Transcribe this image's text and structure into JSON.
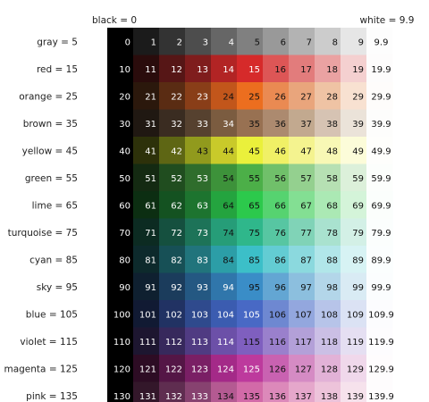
{
  "chart_data": {
    "type": "heatmap",
    "top_left_label": "black = 0",
    "top_right_label": "white = 9.9",
    "rows": [
      {
        "label": "gray = 5",
        "values": [
          "0",
          "1",
          "2",
          "3",
          "4",
          "5",
          "6",
          "7",
          "8",
          "9",
          "9.9"
        ],
        "colors": [
          "#000000",
          "#1b1b1b",
          "#333333",
          "#4d4d4d",
          "#666666",
          "#808080",
          "#999999",
          "#b3b3b3",
          "#cccccc",
          "#e6e6e6",
          "#fdfdfd"
        ]
      },
      {
        "label": "red = 15",
        "values": [
          "10",
          "11",
          "12",
          "13",
          "14",
          "15",
          "16",
          "17",
          "18",
          "19",
          "19.9"
        ],
        "colors": [
          "#000000",
          "#2a0c0c",
          "#561616",
          "#7f1d1d",
          "#b22424",
          "#d62a2a",
          "#dd5656",
          "#e27c7c",
          "#eaa2a2",
          "#f4d0d0",
          "#fdfcfc"
        ]
      },
      {
        "label": "orange = 25",
        "values": [
          "20",
          "21",
          "22",
          "23",
          "24",
          "25",
          "26",
          "27",
          "28",
          "29",
          "29.9"
        ],
        "colors": [
          "#000000",
          "#2b180c",
          "#5a2c13",
          "#893e18",
          "#c2561b",
          "#ec6e1f",
          "#ea8a52",
          "#e9a57c",
          "#efc3a4",
          "#f8e1d1",
          "#fefcfb"
        ]
      },
      {
        "label": "brown = 35",
        "values": [
          "30",
          "31",
          "32",
          "33",
          "34",
          "35",
          "36",
          "37",
          "38",
          "39",
          "39.9"
        ],
        "colors": [
          "#000000",
          "#201812",
          "#3a2c21",
          "#56412f",
          "#7b5c40",
          "#987152",
          "#ac8a6f",
          "#c2a98f",
          "#d6c3b3",
          "#ebe3d9",
          "#fdfdfc"
        ]
      },
      {
        "label": "yellow = 45",
        "values": [
          "40",
          "41",
          "42",
          "43",
          "44",
          "45",
          "46",
          "47",
          "48",
          "49",
          "49.9"
        ],
        "colors": [
          "#000000",
          "#2d310a",
          "#5e6614",
          "#919a1d",
          "#c9ca2a",
          "#eaf03b",
          "#f0f066",
          "#f4f38f",
          "#f8f8b5",
          "#fcfcd9",
          "#fefefc"
        ]
      },
      {
        "label": "green = 55",
        "values": [
          "50",
          "51",
          "52",
          "53",
          "54",
          "55",
          "56",
          "57",
          "58",
          "59",
          "59.9"
        ],
        "colors": [
          "#000000",
          "#142a12",
          "#204d1f",
          "#2f6d2c",
          "#3d923a",
          "#4caf48",
          "#70c06a",
          "#94d08f",
          "#b6e0b3",
          "#dcf0da",
          "#fcfefc"
        ]
      },
      {
        "label": "lime = 65",
        "values": [
          "60",
          "61",
          "62",
          "63",
          "64",
          "65",
          "66",
          "67",
          "68",
          "69",
          "69.9"
        ],
        "colors": [
          "#000000",
          "#0c2e12",
          "#145221",
          "#1d742f",
          "#24a43f",
          "#2cc94c",
          "#56d370",
          "#83df93",
          "#abe9b4",
          "#d4f4d9",
          "#fbfefc"
        ]
      },
      {
        "label": "turquoise = 75",
        "values": [
          "70",
          "71",
          "72",
          "73",
          "74",
          "75",
          "76",
          "77",
          "78",
          "79",
          "79.9"
        ],
        "colors": [
          "#000000",
          "#0c2b22",
          "#15503f",
          "#1d7358",
          "#269d78",
          "#2fb78b",
          "#57c6a2",
          "#80d3b7",
          "#a9e2cf",
          "#d3f0e6",
          "#fbfefd"
        ]
      },
      {
        "label": "cyan = 85",
        "values": [
          "80",
          "81",
          "82",
          "83",
          "84",
          "85",
          "86",
          "87",
          "88",
          "89",
          "89.9"
        ],
        "colors": [
          "#000000",
          "#0d2a2c",
          "#175056",
          "#21747c",
          "#2c9ea7",
          "#3cbfc8",
          "#63ccd3",
          "#8bd9de",
          "#b1e6e9",
          "#d7f3f4",
          "#fbfefe"
        ]
      },
      {
        "label": "sky = 95",
        "values": [
          "90",
          "91",
          "92",
          "93",
          "94",
          "95",
          "96",
          "97",
          "98",
          "99",
          "99.9"
        ],
        "colors": [
          "#000000",
          "#0f2030",
          "#1b3c5c",
          "#245882",
          "#3076ab",
          "#3a8dc7",
          "#63a6d3",
          "#8cbfde",
          "#b3d6e9",
          "#d9ebf4",
          "#fbfdfe"
        ]
      },
      {
        "label": "blue = 105",
        "values": [
          "100",
          "101",
          "102",
          "103",
          "104",
          "105",
          "106",
          "107",
          "108",
          "109",
          "109.9"
        ],
        "colors": [
          "#000000",
          "#111a33",
          "#213263",
          "#2f4a8d",
          "#3b5cb0",
          "#4869c5",
          "#6e88d1",
          "#93a7de",
          "#b7c4e9",
          "#dbe2f4",
          "#fcfcfe"
        ]
      },
      {
        "label": "violet = 115",
        "values": [
          "110",
          "111",
          "112",
          "113",
          "114",
          "115",
          "116",
          "117",
          "118",
          "119",
          "119.9"
        ],
        "colors": [
          "#000000",
          "#1d1630",
          "#37295c",
          "#503b82",
          "#6c50a8",
          "#7f5fbf",
          "#9a80cc",
          "#b3a0d8",
          "#cbbfe5",
          "#e5dff2",
          "#fdfcfe"
        ]
      },
      {
        "label": "magenta = 125",
        "values": [
          "120",
          "121",
          "122",
          "123",
          "124",
          "125",
          "126",
          "127",
          "128",
          "129",
          "129.9"
        ],
        "colors": [
          "#000000",
          "#2d0c24",
          "#541646",
          "#7a1f65",
          "#a42a88",
          "#bd3a9d",
          "#c962b1",
          "#d58bc4",
          "#e2b2d7",
          "#f0d8eb",
          "#fefcfd"
        ]
      },
      {
        "label": "pink = 135",
        "values": [
          "130",
          "131",
          "132",
          "133",
          "134",
          "135",
          "136",
          "137",
          "138",
          "139",
          "139.9"
        ],
        "colors": [
          "#000000",
          "#33172a",
          "#5f2d50",
          "#874270",
          "#b45a92",
          "#d26aa8",
          "#dc89ba",
          "#e5a7cb",
          "#edc3da",
          "#f6e2ec",
          "#fefcfd"
        ]
      }
    ]
  }
}
